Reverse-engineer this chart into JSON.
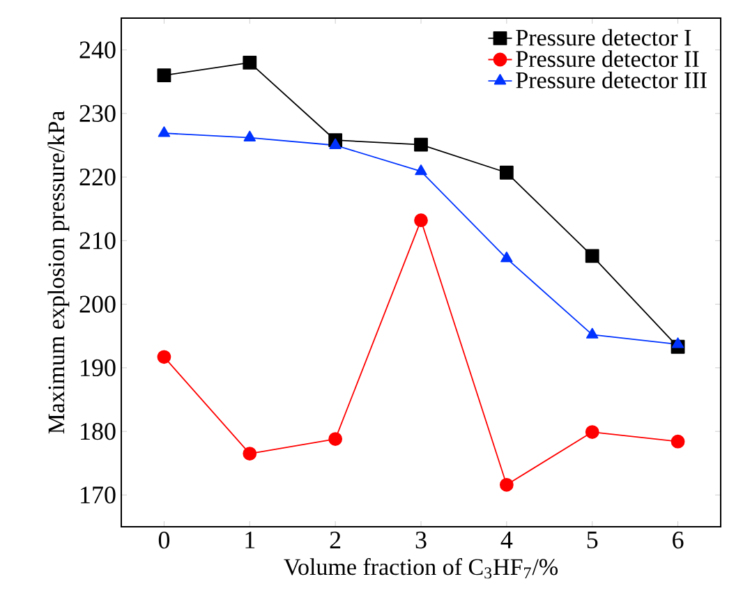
{
  "chart_data": {
    "type": "line",
    "xlabel": "Volume fraction of C$_{3}$HF$_{7}$/%",
    "ylabel": "Maximum explosion pressure/kPa",
    "x": [
      0,
      1,
      2,
      3,
      4,
      5,
      6
    ],
    "xlim": [
      -0.5,
      6.5
    ],
    "xticks": [
      0,
      1,
      2,
      3,
      4,
      5,
      6
    ],
    "ylim": [
      165,
      245
    ],
    "yticks": [
      170,
      180,
      190,
      200,
      210,
      220,
      230,
      240
    ],
    "legend": "top right",
    "grid": false,
    "line_style": "solid",
    "series": [
      {
        "name": "Pressure detector I",
        "color": "#000000",
        "marker": "square",
        "values": [
          236,
          238,
          225.8,
          225.1,
          220.7,
          207.6,
          193.3
        ]
      },
      {
        "name": "Pressure detector II",
        "color": "#ff0000",
        "marker": "circle",
        "values": [
          191.7,
          176.5,
          178.8,
          213.2,
          171.6,
          179.9,
          178.4
        ]
      },
      {
        "name": "Pressure detector III",
        "color": "#0033ff",
        "marker": "triangle",
        "values": [
          226.9,
          226.2,
          225.0,
          220.9,
          207.2,
          195.2,
          193.7
        ]
      }
    ]
  }
}
